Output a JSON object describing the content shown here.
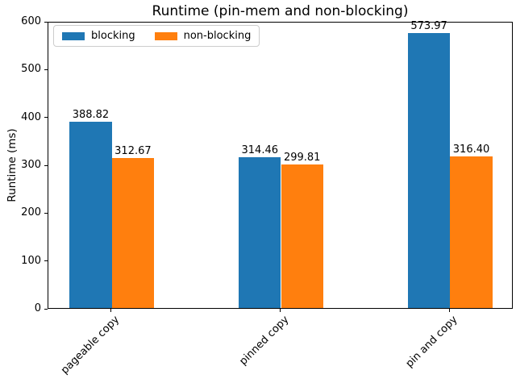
{
  "chart_data": {
    "type": "bar",
    "title": "Runtime (pin-mem and non-blocking)",
    "xlabel": "",
    "ylabel": "Runtime (ms)",
    "categories": [
      "pageable copy",
      "pinned copy",
      "pin and copy"
    ],
    "series": [
      {
        "name": "blocking",
        "color": "#1f77b4",
        "values": [
          388.82,
          314.46,
          573.97
        ]
      },
      {
        "name": "non-blocking",
        "color": "#ff7f0e",
        "values": [
          312.67,
          299.81,
          316.4
        ]
      }
    ],
    "ylim": [
      0,
      600
    ],
    "yticks": [
      0,
      100,
      200,
      300,
      400,
      500,
      600
    ],
    "xlim": [
      -0.375,
      2.375
    ],
    "bar_width": 0.25,
    "value_label_decimals": 2,
    "grid": false,
    "legend_position": "upper left",
    "x_tick_rotation_deg": 45
  }
}
